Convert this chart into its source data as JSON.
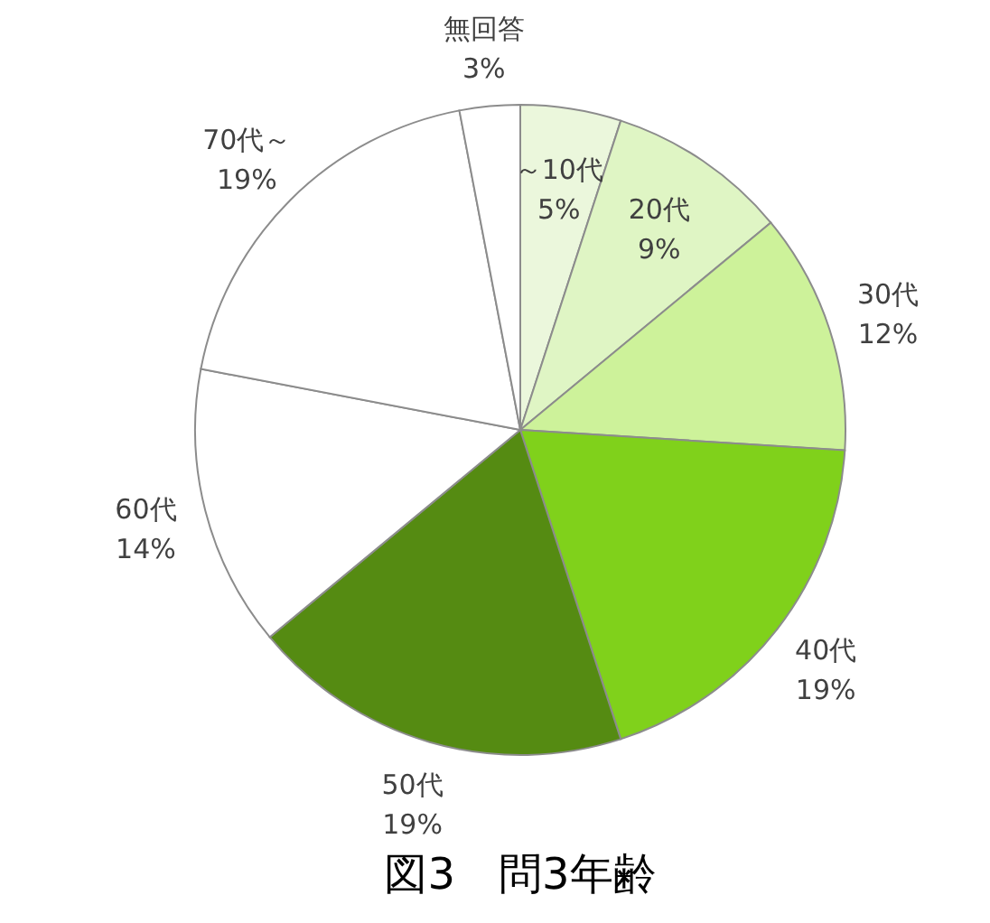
{
  "chart_data": {
    "type": "pie",
    "title": "図3　問3年齢",
    "categories": [
      "～10代",
      "20代",
      "30代",
      "40代",
      "50代",
      "60代",
      "70代～",
      "無回答"
    ],
    "values": [
      5,
      9,
      12,
      19,
      19,
      14,
      19,
      3
    ],
    "value_labels": [
      "5%",
      "9%",
      "12%",
      "19%",
      "19%",
      "14%",
      "19%",
      "3%"
    ],
    "colors": [
      "#ebf7dc",
      "#dff5c4",
      "#cdf29a",
      "#80d11b",
      "#558b12",
      "#ffffff",
      "#ffffff",
      "#ffffff"
    ]
  }
}
